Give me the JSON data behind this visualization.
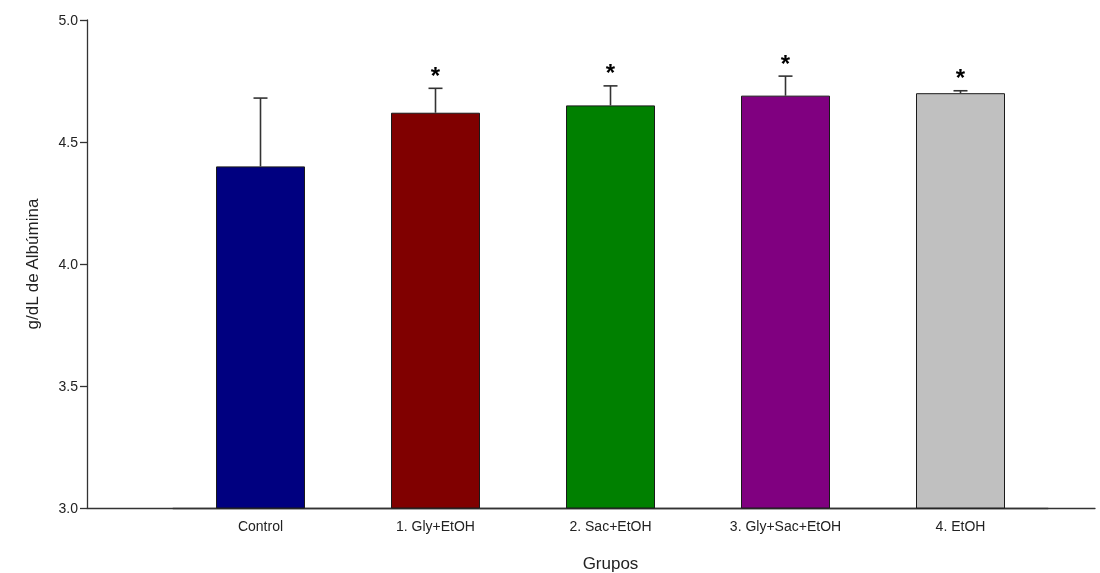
{
  "chart_data": {
    "type": "bar",
    "categories": [
      "Control",
      "1. Gly+EtOH",
      "2. Sac+EtOH",
      "3. Gly+Sac+EtOH",
      "4. EtOH"
    ],
    "values": [
      4.4,
      4.62,
      4.65,
      4.69,
      4.7
    ],
    "errors": [
      [
        4.4,
        4.68
      ],
      [
        4.62,
        4.72
      ],
      [
        4.65,
        4.73
      ],
      [
        4.69,
        4.77
      ],
      [
        4.7,
        4.71
      ]
    ],
    "colors": [
      "#000080",
      "#800000",
      "#008000",
      "#800080",
      "#c0c0c0"
    ],
    "xlabel": "Grupos",
    "ylabel": "g/dL de Albúmina",
    "ylim": [
      3.0,
      5.0
    ],
    "yticks": [
      {
        "value": 3,
        "label": "3.0"
      },
      3.5,
      {
        "value": 4,
        "label": "4.0"
      },
      4.5,
      {
        "value": 5,
        "label": "5.0"
      }
    ],
    "annotations": [
      {
        "text": "*",
        "x": "1. Gly+EtOH",
        "y": 4.62
      },
      {
        "text": "*",
        "x": "2. Sac+EtOH",
        "y": 4.65
      },
      {
        "text": "*",
        "x": "3. Gly+Sac+EtOH",
        "y": 4.69
      },
      {
        "text": "*",
        "x": "4. EtOH",
        "y": 4.7
      }
    ]
  }
}
